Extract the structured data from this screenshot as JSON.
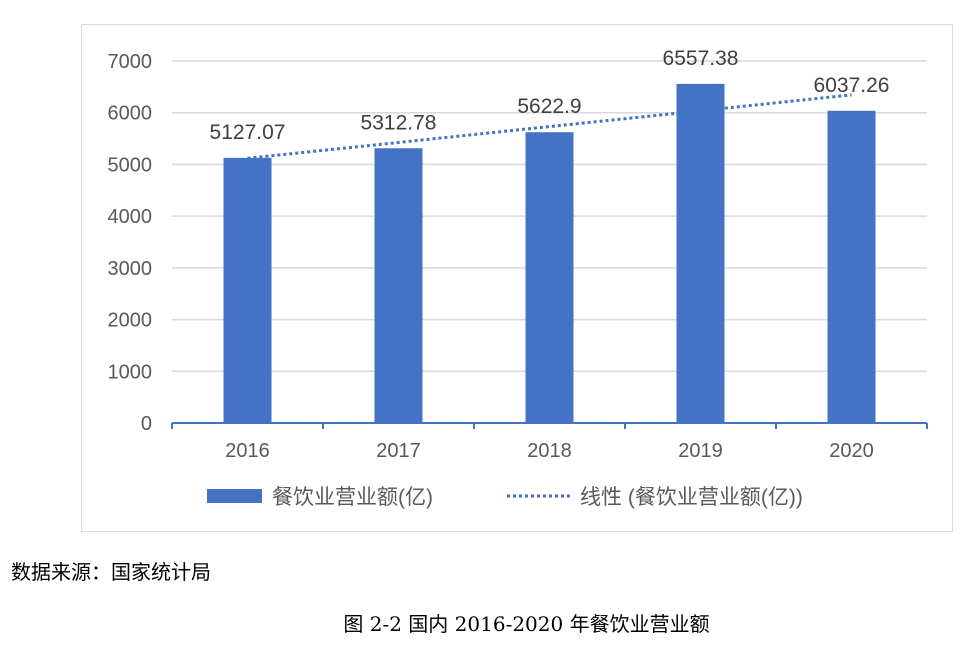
{
  "chart_data": {
    "type": "bar",
    "categories": [
      "2016",
      "2017",
      "2018",
      "2019",
      "2020"
    ],
    "series": [
      {
        "name": "餐饮业营业额(亿)",
        "values": [
          5127.07,
          5312.78,
          5622.9,
          6557.38,
          6037.26
        ],
        "labels": [
          "5127.07",
          "5312.78",
          "5622.9",
          "6557.38",
          "6037.26"
        ],
        "color": "#4472C4"
      }
    ],
    "trendline": {
      "type": "linear",
      "name": "线性 (餐饮业营业额(亿))",
      "style": "dotted",
      "color": "#4472C4"
    },
    "ylim": [
      0,
      7000
    ],
    "yticks": [
      "0",
      "1000",
      "2000",
      "3000",
      "4000",
      "5000",
      "6000",
      "7000"
    ],
    "grid": true,
    "legend_position": "bottom",
    "title": "",
    "xlabel": "",
    "ylabel": ""
  },
  "source_note": "数据来源：国家统计局",
  "caption": "图 2-2  国内 2016-2020 年餐饮业营业额"
}
